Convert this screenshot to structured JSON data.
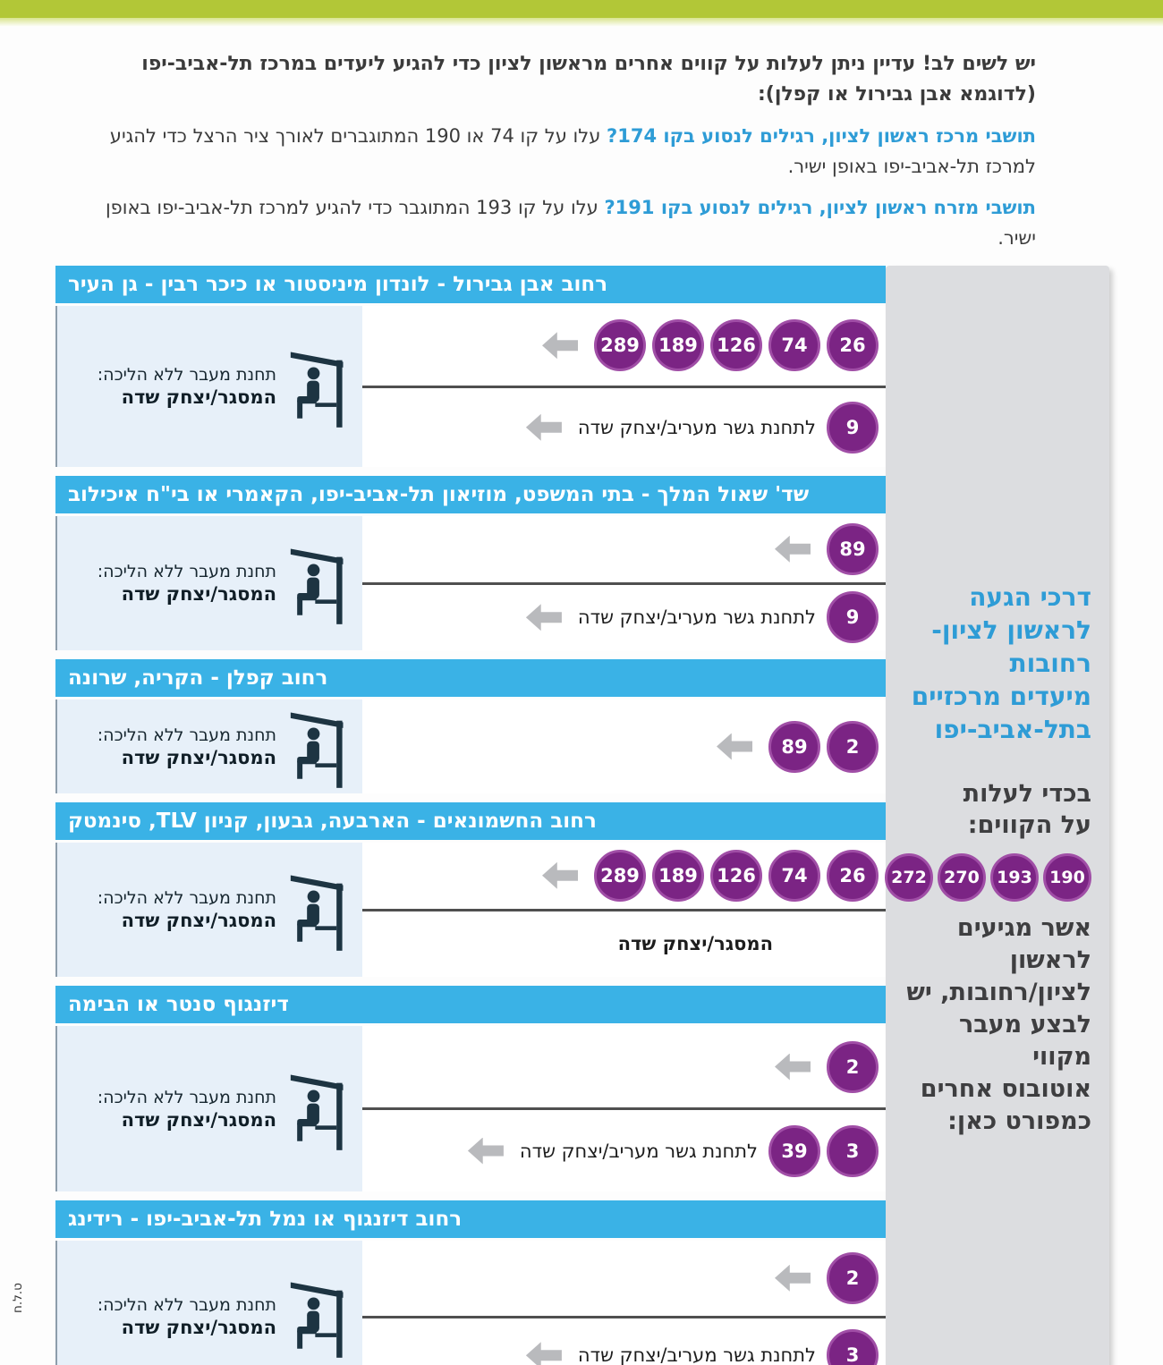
{
  "colors": {
    "green": "#b2c737",
    "cyan": "#3ab2e6",
    "purple": "#7b2484",
    "purple_ring": "#a04ea6",
    "arrow": "#b9babd",
    "sidebar_gray": "#dcdde0",
    "panel_blue": "#e7f0f9",
    "blue_text": "#2e9cd6",
    "dark_text": "#3b3b3b"
  },
  "intro": {
    "line1": "יש לשים לב! עדיין ניתן לעלות על קווים אחרים מראשון לציון כדי להגיע ליעדים במרכז תל-אביב-יפו",
    "line2": "(לדוגמא אבן גבירול או קפלן):",
    "p2_highlight": "תושבי מרכז ראשון לציון, רגילים לנסוע בקו 174?",
    "p2_rest": " עלו על קו 74 או 190 המתוגברים לאורך ציר הרצל כדי להגיע למרכז תל-אביב-יפו באופן ישיר.",
    "p3_highlight": "תושבי מזרח ראשון לציון, רגילים לנסוע בקו 191?",
    "p3_rest": " עלו על קו 193 המתוגבר כדי להגיע למרכז תל-אביב-יפו באופן ישיר."
  },
  "stop_label": {
    "line1": "תחנת מעבר ללא הליכה:",
    "line2": "המסגר/יצחק שדה"
  },
  "sections": [
    {
      "title": "רחוב אבן גבירול - לונדון מיניסטור או כיכר רבין - גן העיר",
      "rows": [
        {
          "lines": [
            "26",
            "74",
            "126",
            "189",
            "289"
          ],
          "note": "",
          "arrow": true,
          "emphasis": false
        },
        {
          "lines": [
            "9"
          ],
          "note": "לתחנת גשר מעריב/יצחק שדה",
          "arrow": true,
          "emphasis": false
        }
      ]
    },
    {
      "title": "שד' שאול המלך - בתי המשפט, מוזיאון תל-אביב-יפו, הקאמרי או בי\"ח איכילוב",
      "rows": [
        {
          "lines": [
            "89"
          ],
          "note": "",
          "arrow": true,
          "emphasis": false
        },
        {
          "lines": [
            "9"
          ],
          "note": "לתחנת גשר מעריב/יצחק שדה",
          "arrow": true,
          "emphasis": false
        }
      ]
    },
    {
      "title": "רחוב קפלן - הקריה, שרונה",
      "rows": [
        {
          "lines": [
            "2",
            "89"
          ],
          "note": "",
          "arrow": true,
          "emphasis": false
        }
      ]
    },
    {
      "title": "רחוב החשמונאים - הארבעה, גבעון, קניון TLV, סינמטק",
      "rows": [
        {
          "lines": [
            "26",
            "74",
            "126",
            "189",
            "289"
          ],
          "note": "",
          "arrow": true,
          "emphasis": false
        },
        {
          "lines": [],
          "note": "המסגר/יצחק שדה",
          "arrow": false,
          "emphasis": true
        }
      ]
    },
    {
      "title": "דיזנגוף סנטר או הבימה",
      "rows": [
        {
          "lines": [
            "2"
          ],
          "note": "",
          "arrow": true,
          "emphasis": false
        },
        {
          "lines": [
            "3",
            "39"
          ],
          "note": "לתחנת גשר מעריב/יצחק שדה",
          "arrow": true,
          "emphasis": false
        }
      ]
    },
    {
      "title": "רחוב דיזנגוף או נמל תל-אביב-יפו - רידינג",
      "rows": [
        {
          "lines": [
            "2"
          ],
          "note": "",
          "arrow": true,
          "emphasis": false
        },
        {
          "lines": [
            "3"
          ],
          "note": "לתחנת גשר מעריב/יצחק שדה",
          "arrow": true,
          "emphasis": false
        }
      ]
    }
  ],
  "sidebar": {
    "title": "דרכי הגעה\nלראשון לציון-\nרחובות\nמיעדים מרכזיים\nבתל-אביב-יפו",
    "subtitle": "בכדי לעלות\nעל הקווים:",
    "lines": [
      "190",
      "193",
      "270",
      "272"
    ],
    "footer": "אשר מגיעים לראשון\nלציון/רחובות, יש\nלבצע מעבר מקווי\nאוטובוס אחרים\nכמפורט כאן:"
  },
  "footnote": "ט.ל.ח"
}
